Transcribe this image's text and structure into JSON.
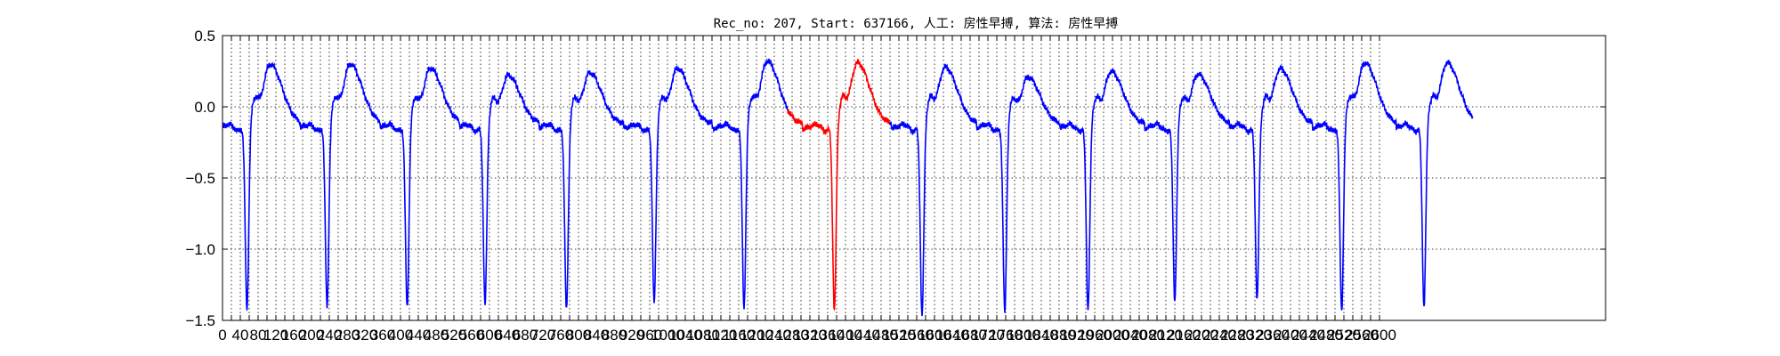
{
  "chart_data": {
    "type": "line",
    "title": "Rec_no: 207, Start: 637166, 人工: 房性早搏, 算法: 房性早搏",
    "xlabel": "",
    "ylabel": "",
    "xlim": [
      0,
      1000
    ],
    "ylim": [
      -1.5,
      0.5
    ],
    "yticks": [
      0.5,
      0.0,
      -0.5,
      -1.0,
      -1.5
    ],
    "ytick_labels": [
      "0.5",
      "0.0",
      "−0.5",
      "−1.0",
      "−1.5"
    ],
    "xticks": [
      0,
      20,
      40,
      60,
      80,
      100,
      120,
      140,
      160,
      180,
      200,
      220,
      240,
      260,
      280,
      300,
      320,
      340,
      360,
      380,
      400,
      420,
      440,
      460,
      480,
      500,
      520,
      540,
      560,
      580,
      600,
      620,
      640,
      660,
      680,
      700,
      720,
      740,
      760,
      780,
      800,
      820,
      840,
      860,
      880,
      900,
      920,
      940,
      960,
      980,
      1000,
      1020,
      1040,
      1060,
      1080,
      1100,
      1120,
      1140,
      1160,
      1180,
      1200,
      1220,
      1240,
      1260,
      1280,
      1300,
      1320,
      1340,
      1360,
      1380,
      1400,
      1420,
      1440,
      1460,
      1480,
      1500,
      1520,
      1540,
      1560,
      1580,
      1600,
      1620,
      1640,
      1660,
      1680,
      1700,
      1720,
      1740,
      1760,
      1780,
      1800,
      1820,
      1840,
      1860,
      1880,
      1900,
      1920,
      1940,
      1960,
      1980,
      2000,
      2020,
      2040,
      2060,
      2080,
      2100,
      2120,
      2140,
      2160,
      2180,
      2200,
      2220,
      2240,
      2260,
      2280,
      2300,
      2320,
      2340,
      2360,
      2380,
      2400,
      2420,
      2440,
      2460,
      2480,
      2500,
      2520,
      2540,
      2560,
      2580,
      2600
    ],
    "xtick_labels": [
      "0",
      "40",
      "80",
      "120",
      "160",
      "200",
      "240",
      "280",
      "320",
      "360",
      "400",
      "440",
      "480",
      "520",
      "560",
      "600",
      "640",
      "680",
      "720",
      "760",
      "800",
      "840",
      "880",
      "920",
      "960",
      "1000",
      "1040",
      "1080",
      "1120",
      "1160",
      "1200",
      "1240",
      "1280",
      "1320",
      "1360",
      "1400",
      "1440",
      "1480",
      "1520",
      "1560",
      "1600",
      "1640",
      "1680",
      "1720",
      "1760",
      "1800",
      "1840",
      "1880",
      "1920",
      "1960",
      "2000",
      "2040",
      "2080",
      "2120",
      "2160",
      "2200",
      "2240",
      "2280",
      "2320",
      "2360",
      "2400",
      "2440",
      "2480",
      "2520",
      "2560",
      "2600"
    ],
    "grid": true,
    "beats": [
      {
        "t": 55,
        "amp": -1.43,
        "t_amp": 0.37,
        "dev": 0
      },
      {
        "t": 235,
        "amp": -1.41,
        "t_amp": 0.37,
        "dev": 1
      },
      {
        "t": 415,
        "amp": -1.42,
        "t_amp": 0.34,
        "dev": 2
      },
      {
        "t": 590,
        "amp": -1.4,
        "t_amp": 0.29,
        "dev": 3
      },
      {
        "t": 773,
        "amp": -1.44,
        "t_amp": 0.31,
        "dev": 4
      },
      {
        "t": 970,
        "amp": -1.39,
        "t_amp": 0.34,
        "dev": 5
      },
      {
        "t": 1172,
        "amp": -1.42,
        "t_amp": 0.39,
        "dev": 6
      },
      {
        "t": 1375,
        "amp": -1.44,
        "t_amp": 0.38,
        "dev": 7,
        "highlight": true
      },
      {
        "t": 1572,
        "amp": -1.48,
        "t_amp": 0.35,
        "dev": 8
      },
      {
        "t": 1758,
        "amp": -1.45,
        "t_amp": 0.28,
        "dev": 9
      },
      {
        "t": 1945,
        "amp": -1.43,
        "t_amp": 0.32,
        "dev": 10
      },
      {
        "t": 2140,
        "amp": -1.37,
        "t_amp": 0.3,
        "dev": 11
      },
      {
        "t": 2325,
        "amp": -1.36,
        "t_amp": 0.34,
        "dev": 12
      },
      {
        "t": 2515,
        "amp": -1.44,
        "t_amp": 0.38,
        "dev": 13
      },
      {
        "t": 2700,
        "amp": -1.41,
        "t_amp": 0.38,
        "dev": 14
      }
    ],
    "signal_end": 2810,
    "series": [
      {
        "color": "#0000ff"
      },
      {
        "color": "#ff0000",
        "range": [
          1270,
          1500
        ]
      }
    ]
  }
}
